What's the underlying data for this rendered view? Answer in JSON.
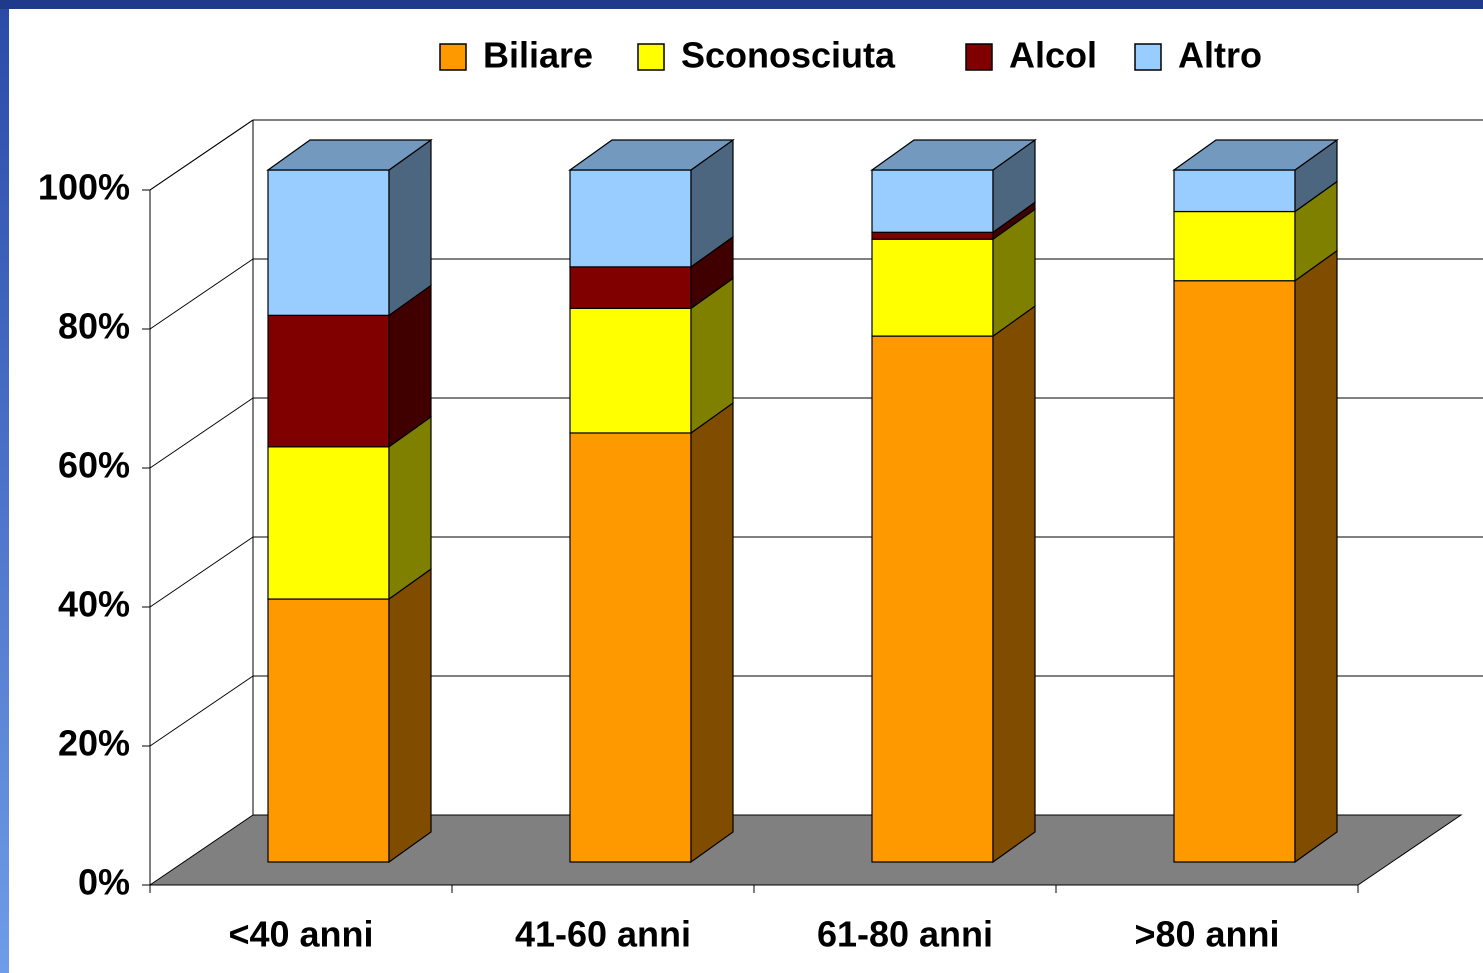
{
  "chart_data": {
    "type": "bar3d_stacked",
    "categories": [
      "<40 anni",
      "41-60 anni",
      "61-80 anni",
      ">80 anni"
    ],
    "series": [
      {
        "name": "Biliare",
        "color": "#FF9900",
        "values": [
          38,
          62,
          76,
          84
        ]
      },
      {
        "name": "Sconosciuta",
        "color": "#FFFF00",
        "values": [
          22,
          18,
          14,
          10
        ]
      },
      {
        "name": "Alcol",
        "color": "#800000",
        "values": [
          19,
          6,
          1,
          0
        ]
      },
      {
        "name": "Altro",
        "color": "#99CCFF",
        "values": [
          21,
          14,
          9,
          6
        ]
      }
    ],
    "ylim": [
      0,
      100
    ],
    "yticks": [
      {
        "value": 0,
        "label": "0%"
      },
      {
        "value": 20,
        "label": "20%"
      },
      {
        "value": 40,
        "label": "40%"
      },
      {
        "value": 60,
        "label": "60%"
      },
      {
        "value": 80,
        "label": "80%"
      },
      {
        "value": 100,
        "label": "100%"
      }
    ],
    "grid": true,
    "legend": "top"
  }
}
